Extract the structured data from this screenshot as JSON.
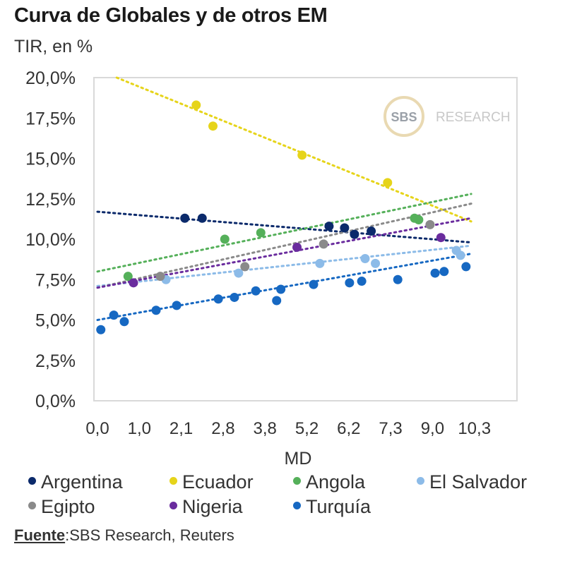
{
  "header": {
    "title": "Curva de Globales y de otros EM",
    "subtitle": "TIR, en %"
  },
  "watermark": {
    "badge": "SBS",
    "text": "RESEARCH"
  },
  "source": {
    "label": "Fuente",
    "text": ":SBS Research, Reuters"
  },
  "chart_data": {
    "type": "scatter",
    "title": "Curva de Globales y de otros EM",
    "subtitle": "TIR, en %",
    "xlabel": "MD",
    "ylabel": "TIR, en %",
    "x_ticks": [
      0.0,
      1.0,
      2.1,
      2.8,
      3.8,
      5.2,
      6.2,
      7.3,
      9.0,
      10.3
    ],
    "x_tick_labels": [
      "0,0",
      "1,0",
      "2,1",
      "2,8",
      "3,8",
      "5,2",
      "6,2",
      "7,3",
      "9,0",
      "10,3"
    ],
    "x_range": [
      0.0,
      10.4
    ],
    "y_ticks": [
      0,
      2.5,
      5,
      7.5,
      10,
      12.5,
      15,
      17.5,
      20
    ],
    "y_tick_labels": [
      "0,0%",
      "2,5%",
      "5,0%",
      "7,5%",
      "10,0%",
      "12,5%",
      "15,0%",
      "17,5%",
      "20,0%"
    ],
    "ylim": [
      0,
      20
    ],
    "grid": false,
    "legend_position": "bottom",
    "trendlines": "linear, dotted",
    "series": [
      {
        "name": "Argentina",
        "color": "#0b2a6b",
        "points": [
          [
            2.16,
            11.3
          ],
          [
            2.45,
            11.3
          ],
          [
            5.73,
            10.8
          ],
          [
            6.1,
            10.7
          ],
          [
            6.35,
            10.3
          ],
          [
            6.79,
            10.5
          ]
        ],
        "trend": [
          [
            0.0,
            11.7
          ],
          [
            10.2,
            9.8
          ]
        ]
      },
      {
        "name": "Ecuador",
        "color": "#e6d41a",
        "points": [
          [
            2.35,
            18.3
          ],
          [
            2.63,
            17.0
          ],
          [
            5.04,
            15.2
          ],
          [
            7.22,
            13.5
          ]
        ],
        "trend": [
          [
            0.46,
            20.0
          ],
          [
            10.2,
            11.1
          ]
        ]
      },
      {
        "name": "Angola",
        "color": "#55b05a",
        "points": [
          [
            0.73,
            7.7
          ],
          [
            2.84,
            10.0
          ],
          [
            3.7,
            10.4
          ],
          [
            8.27,
            11.3
          ],
          [
            8.44,
            11.2
          ]
        ],
        "trend": [
          [
            0.0,
            8.0
          ],
          [
            10.2,
            12.8
          ]
        ]
      },
      {
        "name": "El Salvador",
        "color": "#8cbbe8",
        "points": [
          [
            1.7,
            7.5
          ],
          [
            3.17,
            7.9
          ],
          [
            5.51,
            8.5
          ],
          [
            6.63,
            8.8
          ],
          [
            6.9,
            8.5
          ],
          [
            9.74,
            9.3
          ],
          [
            9.87,
            9.0
          ]
        ],
        "trend": [
          [
            0.0,
            7.1
          ],
          [
            10.2,
            9.6
          ]
        ]
      },
      {
        "name": "Egipto",
        "color": "#8a8a8a",
        "points": [
          [
            1.55,
            7.7
          ],
          [
            3.32,
            8.3
          ],
          [
            5.6,
            9.7
          ],
          [
            8.9,
            10.9
          ]
        ],
        "trend": [
          [
            0.0,
            7.0
          ],
          [
            10.2,
            12.2
          ]
        ]
      },
      {
        "name": "Nigeria",
        "color": "#6a2c9e",
        "points": [
          [
            0.86,
            7.3
          ],
          [
            4.87,
            9.5
          ],
          [
            9.26,
            10.1
          ]
        ],
        "trend": [
          [
            0.0,
            7.0
          ],
          [
            10.2,
            11.3
          ]
        ]
      },
      {
        "name": "Turquía",
        "color": "#1668c2",
        "points": [
          [
            0.08,
            4.4
          ],
          [
            0.39,
            5.3
          ],
          [
            0.64,
            4.9
          ],
          [
            1.44,
            5.6
          ],
          [
            1.98,
            5.9
          ],
          [
            2.72,
            6.3
          ],
          [
            3.07,
            6.4
          ],
          [
            3.58,
            6.8
          ],
          [
            4.19,
            6.2
          ],
          [
            4.33,
            6.9
          ],
          [
            5.36,
            7.2
          ],
          [
            6.22,
            7.3
          ],
          [
            6.54,
            7.4
          ],
          [
            7.59,
            7.5
          ],
          [
            9.08,
            7.9
          ],
          [
            9.36,
            8.0
          ],
          [
            10.04,
            8.3
          ]
        ],
        "trend": [
          [
            0.0,
            5.0
          ],
          [
            10.2,
            9.1
          ]
        ]
      }
    ]
  }
}
